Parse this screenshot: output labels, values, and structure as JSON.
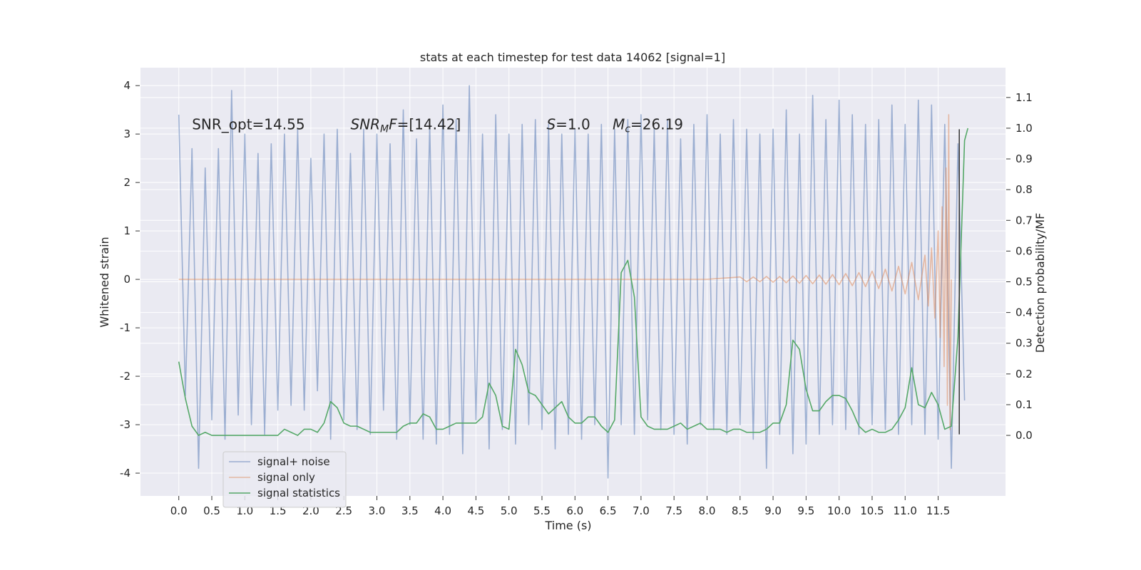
{
  "chart_data": {
    "type": "line",
    "title": "stats at each timestep for test data 14062 [signal=1]",
    "xlabel": "Time (s)",
    "ylabel": "Whitened strain",
    "y2label": "Detection probability/MF",
    "xlim": [
      -0.58,
      12.52
    ],
    "ylim": [
      -4.47,
      4.37
    ],
    "y2lim": [
      -0.197,
      1.197
    ],
    "xticks": [
      {
        "value": 0,
        "label": "0.0"
      },
      0.5,
      {
        "value": 1,
        "label": "1.0"
      },
      1.5,
      {
        "value": 2,
        "label": "2.0"
      },
      2.5,
      {
        "value": 3,
        "label": "3.0"
      },
      3.5,
      {
        "value": 4,
        "label": "4.0"
      },
      4.5,
      {
        "value": 5,
        "label": "5.0"
      },
      5.5,
      {
        "value": 6,
        "label": "6.0"
      },
      6.5,
      {
        "value": 7,
        "label": "7.0"
      },
      7.5,
      {
        "value": 8,
        "label": "8.0"
      },
      8.5,
      {
        "value": 9,
        "label": "9.0"
      },
      9.5,
      {
        "value": 10,
        "label": "10.0"
      },
      10.5,
      {
        "value": 11,
        "label": "11.0"
      },
      11.5
    ],
    "yticks": [
      -4,
      -3,
      -2,
      -1,
      0,
      1,
      2,
      3,
      4
    ],
    "y2ticks": [
      {
        "value": 0,
        "label": "0.0"
      },
      0.1,
      0.2,
      0.3,
      0.4,
      0.5,
      0.6,
      0.7,
      0.8,
      0.9,
      {
        "value": 1,
        "label": "1.0"
      },
      1.1
    ],
    "grid": true,
    "legend": "lower left",
    "series": [
      {
        "name": "signal+ noise",
        "color": "#4c72b0",
        "opacity": 0.5,
        "x": [
          0,
          0.1,
          0.2,
          0.3,
          0.4,
          0.5,
          0.6,
          0.7,
          0.8,
          0.9,
          1.0,
          1.1,
          1.2,
          1.3,
          1.4,
          1.5,
          1.6,
          1.7,
          1.8,
          1.9,
          2.0,
          2.1,
          2.2,
          2.3,
          2.4,
          2.5,
          2.6,
          2.7,
          2.8,
          2.9,
          3.0,
          3.1,
          3.2,
          3.3,
          3.4,
          3.5,
          3.6,
          3.7,
          3.8,
          3.9,
          4.0,
          4.1,
          4.2,
          4.3,
          4.4,
          4.5,
          4.6,
          4.7,
          4.8,
          4.9,
          5.0,
          5.1,
          5.2,
          5.3,
          5.4,
          5.5,
          5.6,
          5.7,
          5.8,
          5.9,
          6.0,
          6.1,
          6.2,
          6.3,
          6.4,
          6.5,
          6.6,
          6.7,
          6.8,
          6.9,
          7.0,
          7.1,
          7.2,
          7.3,
          7.4,
          7.5,
          7.6,
          7.7,
          7.8,
          7.9,
          8.0,
          8.1,
          8.2,
          8.3,
          8.4,
          8.5,
          8.6,
          8.7,
          8.8,
          8.9,
          9.0,
          9.1,
          9.2,
          9.3,
          9.4,
          9.5,
          9.6,
          9.7,
          9.8,
          9.9,
          10.0,
          10.1,
          10.2,
          10.3,
          10.4,
          10.5,
          10.6,
          10.7,
          10.8,
          10.9,
          11.0,
          11.1,
          11.2,
          11.3,
          11.4,
          11.5,
          11.6,
          11.7,
          11.8,
          11.9
        ],
        "values": [
          3.4,
          -2.4,
          2.7,
          -3.9,
          2.3,
          -2.9,
          2.7,
          -3.3,
          3.9,
          -2.8,
          3.0,
          -3.0,
          2.6,
          -3.2,
          2.8,
          -2.7,
          3.0,
          -2.6,
          3.1,
          -2.7,
          2.5,
          -2.3,
          3.0,
          -3.3,
          3.1,
          -2.9,
          2.6,
          -3.1,
          3.1,
          -3.2,
          3.0,
          -2.7,
          2.8,
          -3.3,
          3.5,
          -3.0,
          2.9,
          -3.3,
          3.2,
          -3.4,
          3.6,
          -3.2,
          3.3,
          -3.6,
          4.0,
          -2.9,
          3.0,
          -3.5,
          3.4,
          -3.1,
          3.0,
          -3.4,
          3.2,
          -3.0,
          3.3,
          -3.1,
          3.2,
          -3.5,
          3.0,
          -3.2,
          3.1,
          -3.3,
          3.0,
          -3.0,
          3.2,
          -4.1,
          3.1,
          -3.0,
          3.3,
          -3.2,
          3.4,
          -2.9,
          3.1,
          -3.1,
          3.3,
          -3.2,
          2.9,
          -3.4,
          3.2,
          -3.0,
          3.4,
          -3.1,
          3.0,
          -3.2,
          3.3,
          -3.0,
          3.1,
          -3.3,
          3.0,
          -3.9,
          3.1,
          -3.2,
          3.5,
          -3.6,
          3.0,
          -3.4,
          3.8,
          -3.2,
          3.3,
          -3.0,
          3.7,
          -3.1,
          3.4,
          -3.2,
          3.2,
          -3.0,
          3.3,
          -3.1,
          3.6,
          -3.2,
          3.2,
          -3.0,
          3.7,
          -3.2,
          3.6,
          -3.3,
          3.2,
          -3.9,
          2.8,
          -2.5
        ]
      },
      {
        "name": "signal only",
        "color": "#dd8452",
        "opacity": 0.5,
        "x": [
          0,
          6.5,
          7.0,
          7.5,
          8.0,
          8.5,
          8.6,
          8.7,
          8.8,
          8.9,
          9.0,
          9.1,
          9.2,
          9.3,
          9.4,
          9.5,
          9.6,
          9.7,
          9.8,
          9.9,
          10.0,
          10.1,
          10.2,
          10.3,
          10.4,
          10.5,
          10.6,
          10.7,
          10.8,
          10.9,
          11.0,
          11.1,
          11.2,
          11.3,
          11.35,
          11.4,
          11.45,
          11.5,
          11.53,
          11.56,
          11.59,
          11.62,
          11.64,
          11.66,
          11.68,
          11.7
        ],
        "values": [
          0,
          0,
          0,
          0,
          0,
          0.05,
          -0.05,
          0.05,
          -0.05,
          0.06,
          -0.06,
          0.06,
          -0.07,
          0.07,
          -0.08,
          0.08,
          -0.09,
          0.09,
          -0.1,
          0.1,
          -0.11,
          0.12,
          -0.13,
          0.14,
          -0.15,
          0.17,
          -0.19,
          0.21,
          -0.24,
          0.27,
          -0.3,
          0.35,
          -0.42,
          0.5,
          -0.55,
          0.65,
          -0.8,
          1.0,
          -1.2,
          1.5,
          -1.8,
          2.3,
          -2.6,
          3.4,
          -3.1,
          0
        ]
      },
      {
        "name": "signal statistics",
        "color": "#55a868",
        "axis": "y2",
        "x": [
          0,
          0.1,
          0.2,
          0.3,
          0.4,
          0.5,
          0.6,
          0.7,
          0.8,
          0.9,
          1.0,
          1.1,
          1.2,
          1.3,
          1.4,
          1.5,
          1.6,
          1.7,
          1.8,
          1.9,
          2.0,
          2.1,
          2.2,
          2.3,
          2.4,
          2.5,
          2.6,
          2.7,
          2.8,
          2.9,
          3.0,
          3.1,
          3.2,
          3.3,
          3.4,
          3.5,
          3.6,
          3.7,
          3.8,
          3.9,
          4.0,
          4.1,
          4.2,
          4.3,
          4.4,
          4.5,
          4.6,
          4.7,
          4.8,
          4.9,
          5.0,
          5.1,
          5.2,
          5.3,
          5.4,
          5.5,
          5.6,
          5.7,
          5.8,
          5.9,
          6.0,
          6.1,
          6.2,
          6.3,
          6.4,
          6.5,
          6.6,
          6.7,
          6.8,
          6.9,
          7.0,
          7.1,
          7.2,
          7.3,
          7.4,
          7.5,
          7.6,
          7.7,
          7.8,
          7.9,
          8.0,
          8.1,
          8.2,
          8.3,
          8.4,
          8.5,
          8.6,
          8.7,
          8.8,
          8.9,
          9.0,
          9.1,
          9.2,
          9.3,
          9.4,
          9.5,
          9.6,
          9.7,
          9.8,
          9.9,
          10.0,
          10.1,
          10.2,
          10.3,
          10.4,
          10.5,
          10.6,
          10.7,
          10.8,
          10.9,
          11.0,
          11.1,
          11.2,
          11.3,
          11.4,
          11.5,
          11.6,
          11.7,
          11.8,
          11.9,
          11.95
        ],
        "values": [
          0.24,
          0.12,
          0.03,
          0.0,
          0.01,
          0.0,
          0.0,
          0.0,
          0.0,
          0.0,
          0.0,
          0.0,
          0.0,
          0.0,
          0.0,
          0.0,
          0.02,
          0.01,
          0.0,
          0.02,
          0.02,
          0.01,
          0.04,
          0.11,
          0.09,
          0.04,
          0.03,
          0.03,
          0.02,
          0.01,
          0.01,
          0.01,
          0.01,
          0.01,
          0.03,
          0.04,
          0.04,
          0.07,
          0.06,
          0.02,
          0.02,
          0.03,
          0.04,
          0.04,
          0.04,
          0.04,
          0.06,
          0.17,
          0.13,
          0.03,
          0.02,
          0.28,
          0.23,
          0.14,
          0.13,
          0.1,
          0.07,
          0.09,
          0.11,
          0.06,
          0.04,
          0.04,
          0.06,
          0.06,
          0.03,
          0.01,
          0.05,
          0.53,
          0.57,
          0.45,
          0.06,
          0.03,
          0.02,
          0.02,
          0.02,
          0.03,
          0.04,
          0.02,
          0.03,
          0.04,
          0.02,
          0.02,
          0.02,
          0.01,
          0.02,
          0.02,
          0.01,
          0.01,
          0.01,
          0.02,
          0.04,
          0.04,
          0.1,
          0.31,
          0.28,
          0.15,
          0.08,
          0.08,
          0.11,
          0.13,
          0.13,
          0.12,
          0.08,
          0.03,
          0.01,
          0.02,
          0.01,
          0.01,
          0.02,
          0.05,
          0.09,
          0.22,
          0.1,
          0.09,
          0.14,
          0.1,
          0.02,
          0.03,
          0.32,
          0.96,
          1.0
        ]
      }
    ],
    "vlines": [
      {
        "x": 11.82,
        "ymin": -3.2,
        "ymax": 3.1,
        "color": "#333333"
      }
    ],
    "annotations": [
      {
        "x": 0.2,
        "y": 3.1,
        "parts": [
          {
            "text": "SNR_opt=14.55"
          }
        ]
      },
      {
        "x": 2.6,
        "y": 3.1,
        "parts": [
          {
            "text": "SNR",
            "style": "italic"
          },
          {
            "text": "M",
            "style": "italic-sub"
          },
          {
            "text": "F",
            "style": "italic"
          },
          {
            "text": "=[14.42]"
          }
        ]
      },
      {
        "x": 5.57,
        "y": 3.1,
        "parts": [
          {
            "text": "S",
            "style": "italic"
          },
          {
            "text": "=1.0"
          }
        ]
      },
      {
        "x": 6.57,
        "y": 3.1,
        "parts": [
          {
            "text": "M",
            "style": "italic"
          },
          {
            "text": "c",
            "style": "italic-sub"
          },
          {
            "text": "=26.19"
          }
        ]
      }
    ]
  }
}
